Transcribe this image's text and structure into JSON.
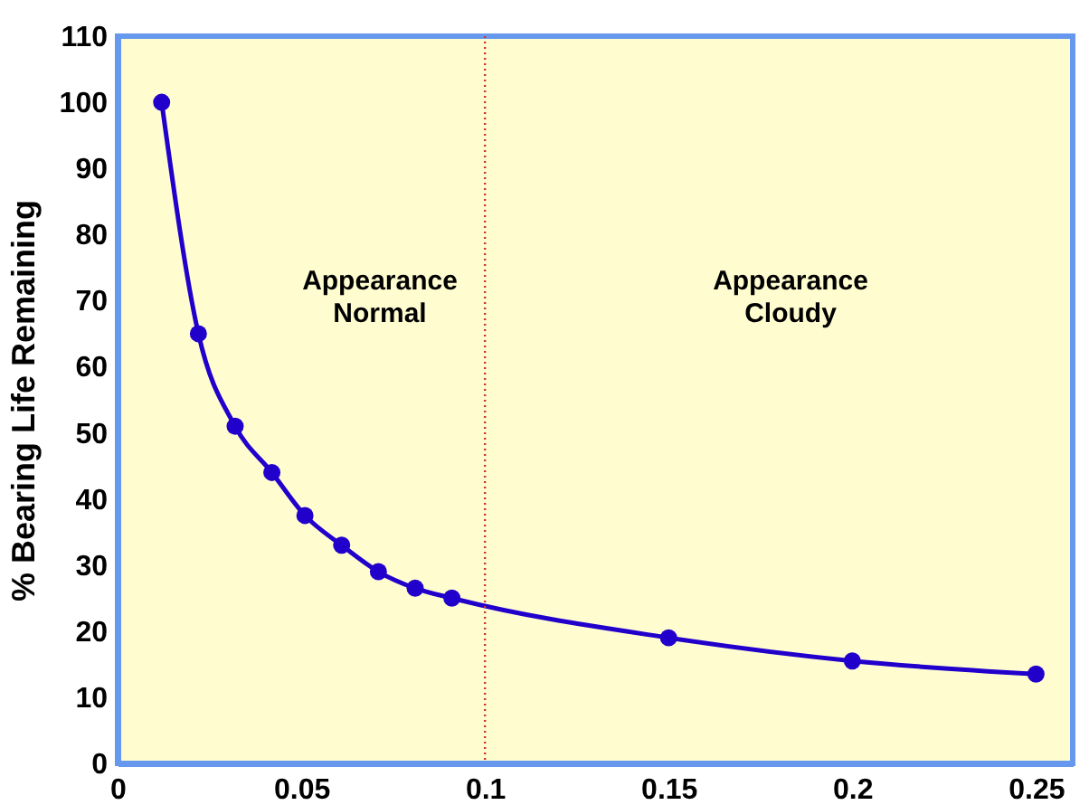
{
  "chart_data": {
    "type": "line",
    "ylabel": "% Bearing Life Remaining",
    "x": [
      0.012,
      0.022,
      0.032,
      0.042,
      0.051,
      0.061,
      0.071,
      0.081,
      0.091,
      0.15,
      0.2,
      0.25
    ],
    "series": [
      {
        "color": "#2200cc",
        "values": [
          100,
          65,
          51,
          44,
          37.5,
          33,
          29,
          26.5,
          25,
          19,
          15.5,
          13.5
        ]
      }
    ],
    "xlim": [
      0,
      0.26
    ],
    "xticks": [
      0,
      0.05,
      0.1,
      0.15,
      0.2,
      0.25
    ],
    "ylim": [
      0,
      110
    ],
    "yticks": [
      0,
      10,
      20,
      30,
      40,
      50,
      60,
      70,
      80,
      90,
      100,
      110
    ],
    "ref_lines": [
      {
        "axis": "x",
        "value": 0.1,
        "color": "#cc3333",
        "line_style": "dotted"
      }
    ],
    "annotations": [
      "Appearance\nNormal",
      "Appearance\nCloudy"
    ],
    "marker": "circle",
    "grid": false,
    "legend": false
  }
}
